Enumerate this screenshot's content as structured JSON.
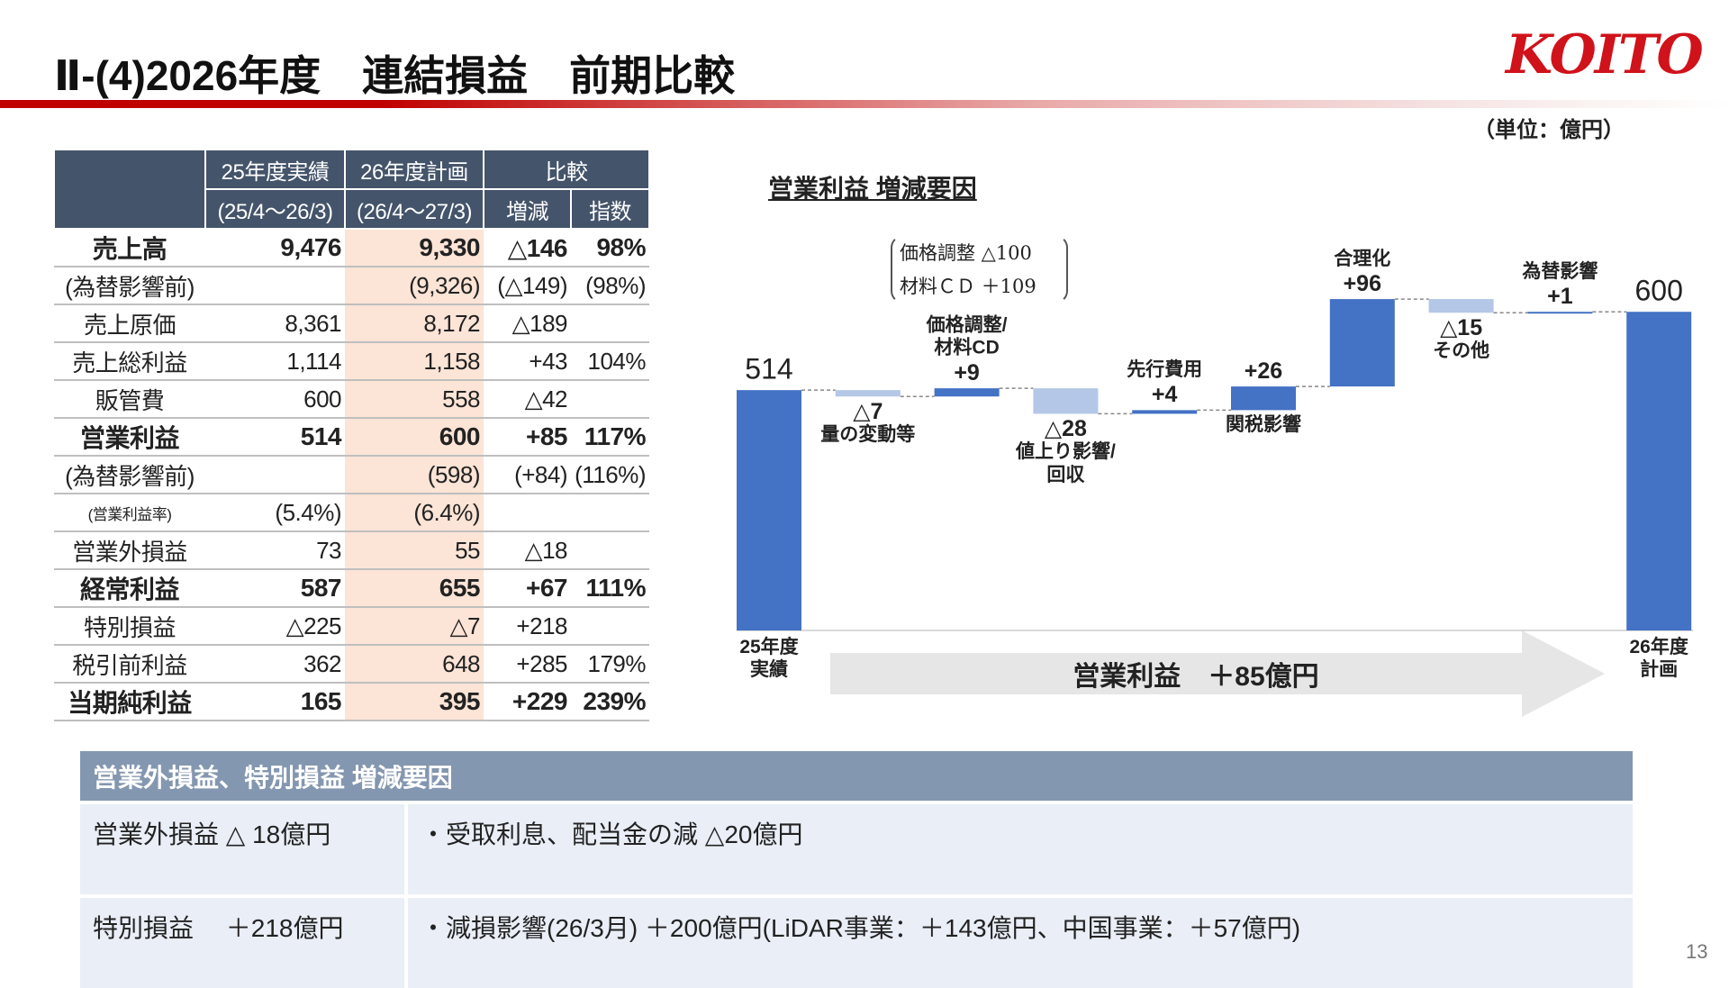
{
  "header": {
    "title": "Ⅱ-(4)2026年度　連結損益　前期比較",
    "logo": "KOITO",
    "unit": "（単位：億円）"
  },
  "table": {
    "header_top": [
      "25年度実績",
      "26年度計画",
      "比較"
    ],
    "header_bottom": [
      "(25/4～26/3)",
      "(26/4～27/3)",
      "増減",
      "指数"
    ],
    "rows": [
      {
        "emphasis": true,
        "cells": [
          "売上高",
          "9,476",
          "9,330",
          "△146",
          "98%"
        ]
      },
      {
        "cells": [
          "(為替影響前)",
          null,
          "(9,326)",
          "(△149)",
          "(98%)"
        ]
      },
      {
        "cells": [
          "売上原価",
          "8,361",
          "8,172",
          "△189",
          null
        ]
      },
      {
        "cells": [
          "売上総利益",
          "1,114",
          "1,158",
          "+43",
          "104%"
        ]
      },
      {
        "cells": [
          "販管費",
          "600",
          "558",
          "△42",
          null
        ]
      },
      {
        "emphasis": true,
        "cells": [
          "営業利益",
          "514",
          "600",
          "+85",
          "117%"
        ]
      },
      {
        "cells": [
          "(為替影響前)",
          null,
          "(598)",
          "(+84)",
          "(116%)"
        ]
      },
      {
        "small": true,
        "cells": [
          "(営業利益率)",
          "(5.4%)",
          "(6.4%)",
          null,
          null
        ]
      },
      {
        "cells": [
          "営業外損益",
          "73",
          "55",
          "△18",
          null
        ]
      },
      {
        "emphasis": true,
        "cells": [
          "経常利益",
          "587",
          "655",
          "+67",
          "111%"
        ]
      },
      {
        "cells": [
          "特別損益",
          "△225",
          "△7",
          "+218",
          null
        ]
      },
      {
        "cells": [
          "税引前利益",
          "362",
          "648",
          "+285",
          "179%"
        ]
      },
      {
        "emphasis": true,
        "cells": [
          "当期純利益",
          "165",
          "395",
          "+229",
          "239%"
        ]
      }
    ]
  },
  "chart_data": {
    "type": "waterfall",
    "title": "営業利益 増減要因",
    "categories": [
      "25年度\n実績",
      "量の変動等",
      "価格調整/\n材料CD",
      "値上り影響/\n回収",
      "先行費用",
      "関税影響",
      "合理化",
      "その他",
      "為替影響",
      "26年度\n計画"
    ],
    "values": [
      514,
      -7,
      9,
      -28,
      4,
      26,
      96,
      -15,
      1,
      600
    ],
    "value_labels": [
      "514",
      "△7",
      "+9",
      "△28",
      "+4",
      "+26",
      "+96",
      "△15",
      "+1",
      "600"
    ],
    "colors": {
      "total": "#4472c4",
      "increase": "#4472c4",
      "decrease": "#b4c7e7"
    },
    "ylim": [
      250,
      620
    ],
    "annotation": "価格調整 △100\n材料ＣＤ ＋109",
    "arrow_label": "営業利益　＋85億円"
  },
  "factors": {
    "title": "営業外損益、特別損益 増減要因",
    "rows": [
      [
        "営業外損益 △ 18億円",
        "・受取利息、配当金の減 △20億円"
      ],
      [
        "特別損益　 ＋218億円",
        "・減損影響(26/3月) ＋200億円(LiDAR事業：＋143億円、中国事業：＋57億円)"
      ]
    ]
  },
  "page": "13"
}
